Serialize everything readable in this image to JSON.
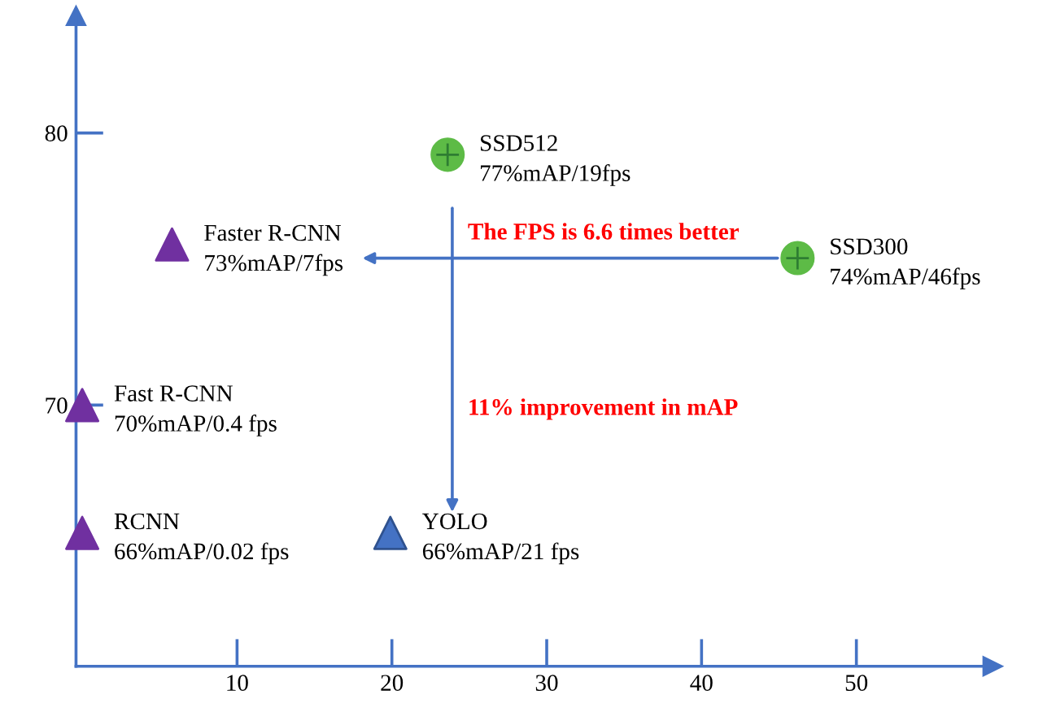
{
  "chart_data": {
    "type": "scatter",
    "xlim": [
      -0.4,
      58.8
    ],
    "ylim": [
      60.4,
      84.3
    ],
    "xticks": [
      10,
      20,
      30,
      40,
      50
    ],
    "yticks": [
      70,
      80
    ],
    "grid": false,
    "legend": false,
    "series": [
      {
        "color": "#7030a0",
        "marker": "triangle",
        "x": [
          0,
          0,
          5.8
        ],
        "values": [
          65.3,
          70,
          75.9
        ],
        "value_labels": [
          "RCNN\n66%mAP/0.02 fps",
          "Fast R-CNN\n70%mAP/0.4 fps",
          "Faster R-CNN\n73%mAP/7fps"
        ]
      },
      {
        "color": "#4472c4",
        "marker": "triangle",
        "x": [
          19.9
        ],
        "values": [
          65.3
        ],
        "value_labels": [
          "YOLO\n66%mAP/21 fps"
        ]
      },
      {
        "color": "#5dbb46",
        "marker": "circle",
        "x": [
          23.6,
          46.2
        ],
        "values": [
          79.2,
          75.4
        ],
        "value_labels": [
          "SSD512\n77%mAP/19fps",
          "SSD300\n74%mAP/46fps"
        ]
      }
    ],
    "annotations": [
      "The FPS is 6.6 times better",
      "11% improvement in mAP"
    ]
  }
}
